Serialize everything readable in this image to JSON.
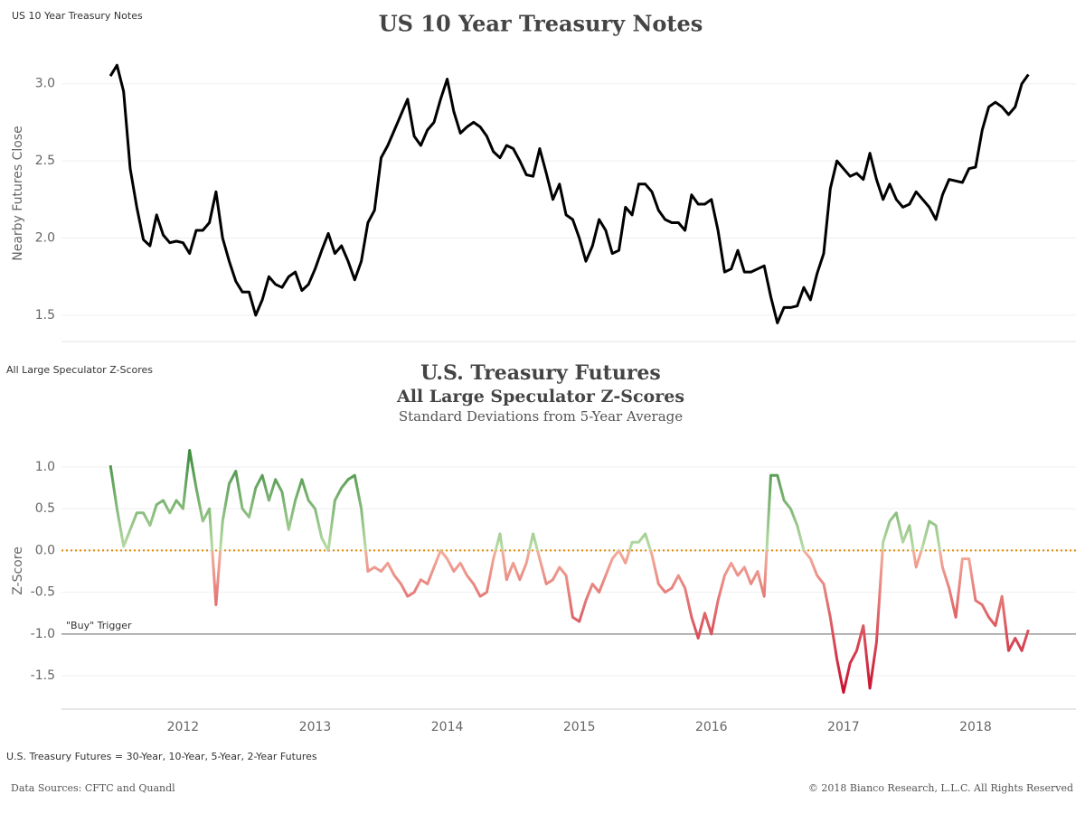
{
  "chart_data": [
    {
      "type": "line",
      "sheet_name": "US 10 Year Treasury Notes",
      "title": "US 10 Year Treasury Notes",
      "y_label": "Nearby Futures Close",
      "x": [
        2011.45,
        2011.5,
        2011.55,
        2011.6,
        2011.65,
        2011.7,
        2011.75,
        2011.8,
        2011.85,
        2011.9,
        2011.95,
        2012.0,
        2012.05,
        2012.1,
        2012.15,
        2012.2,
        2012.25,
        2012.3,
        2012.35,
        2012.4,
        2012.45,
        2012.5,
        2012.55,
        2012.6,
        2012.65,
        2012.7,
        2012.75,
        2012.8,
        2012.85,
        2012.9,
        2012.95,
        2013.0,
        2013.05,
        2013.1,
        2013.15,
        2013.2,
        2013.25,
        2013.3,
        2013.35,
        2013.4,
        2013.45,
        2013.5,
        2013.55,
        2013.6,
        2013.65,
        2013.7,
        2013.75,
        2013.8,
        2013.85,
        2013.9,
        2013.95,
        2014.0,
        2014.05,
        2014.1,
        2014.15,
        2014.2,
        2014.25,
        2014.3,
        2014.35,
        2014.4,
        2014.45,
        2014.5,
        2014.55,
        2014.6,
        2014.65,
        2014.7,
        2014.75,
        2014.8,
        2014.85,
        2014.9,
        2014.95,
        2015.0,
        2015.05,
        2015.1,
        2015.15,
        2015.2,
        2015.25,
        2015.3,
        2015.35,
        2015.4,
        2015.45,
        2015.5,
        2015.55,
        2015.6,
        2015.65,
        2015.7,
        2015.75,
        2015.8,
        2015.85,
        2015.9,
        2015.95,
        2016.0,
        2016.05,
        2016.1,
        2016.15,
        2016.2,
        2016.25,
        2016.3,
        2016.35,
        2016.4,
        2016.45,
        2016.5,
        2016.55,
        2016.6,
        2016.65,
        2016.7,
        2016.75,
        2016.8,
        2016.85,
        2016.9,
        2016.95,
        2017.0,
        2017.05,
        2017.1,
        2017.15,
        2017.2,
        2017.25,
        2017.3,
        2017.35,
        2017.4,
        2017.45,
        2017.5,
        2017.55,
        2017.6,
        2017.65,
        2017.7,
        2017.75,
        2017.8,
        2017.85,
        2017.9,
        2017.95,
        2018.0,
        2018.05,
        2018.1,
        2018.15,
        2018.2,
        2018.25,
        2018.3,
        2018.35,
        2018.4
      ],
      "series": [
        {
          "name": "Nearby Futures Close",
          "color": "#000000",
          "values": [
            3.05,
            3.12,
            2.95,
            2.45,
            2.2,
            1.99,
            1.95,
            2.15,
            2.02,
            1.97,
            1.98,
            1.97,
            1.9,
            2.05,
            2.05,
            2.1,
            2.3,
            2.0,
            1.85,
            1.72,
            1.65,
            1.65,
            1.5,
            1.6,
            1.75,
            1.7,
            1.68,
            1.75,
            1.78,
            1.66,
            1.7,
            1.8,
            1.92,
            2.03,
            1.9,
            1.95,
            1.85,
            1.73,
            1.85,
            2.1,
            2.18,
            2.52,
            2.6,
            2.7,
            2.8,
            2.9,
            2.66,
            2.6,
            2.7,
            2.75,
            2.9,
            3.03,
            2.82,
            2.68,
            2.72,
            2.75,
            2.72,
            2.66,
            2.56,
            2.52,
            2.6,
            2.58,
            2.5,
            2.41,
            2.4,
            2.58,
            2.42,
            2.25,
            2.35,
            2.15,
            2.12,
            2.0,
            1.85,
            1.95,
            2.12,
            2.05,
            1.9,
            1.92,
            2.2,
            2.15,
            2.35,
            2.35,
            2.3,
            2.18,
            2.12,
            2.1,
            2.1,
            2.05,
            2.28,
            2.22,
            2.22,
            2.25,
            2.05,
            1.78,
            1.8,
            1.92,
            1.78,
            1.78,
            1.8,
            1.82,
            1.62,
            1.45,
            1.55,
            1.55,
            1.56,
            1.68,
            1.6,
            1.77,
            1.9,
            2.32,
            2.5,
            2.45,
            2.4,
            2.42,
            2.38,
            2.55,
            2.38,
            2.25,
            2.35,
            2.25,
            2.2,
            2.22,
            2.3,
            2.25,
            2.2,
            2.12,
            2.28,
            2.38,
            2.37,
            2.36,
            2.45,
            2.46,
            2.7,
            2.85,
            2.88,
            2.85,
            2.8,
            2.85,
            3.0,
            3.06
          ]
        }
      ],
      "xlim": [
        2011.08,
        2018.76
      ],
      "ylim": [
        1.33,
        3.25
      ],
      "yticks": [
        1.5,
        {
          "value": 2,
          "label": "2.0"
        },
        2.5,
        {
          "value": 3,
          "label": "3.0"
        }
      ],
      "grid": true
    },
    {
      "type": "line",
      "sheet_name": "All Large Speculator Z-Scores",
      "title": "U.S. Treasury Futures",
      "subtitle": "All Large Speculator Z-Scores",
      "subtitle2": "Standard Deviations from 5-Year Average",
      "y_label": "Z-Score",
      "x": [
        2011.45,
        2011.5,
        2011.55,
        2011.6,
        2011.65,
        2011.7,
        2011.75,
        2011.8,
        2011.85,
        2011.9,
        2011.95,
        2012.0,
        2012.05,
        2012.1,
        2012.15,
        2012.2,
        2012.25,
        2012.3,
        2012.35,
        2012.4,
        2012.45,
        2012.5,
        2012.55,
        2012.6,
        2012.65,
        2012.7,
        2012.75,
        2012.8,
        2012.85,
        2012.9,
        2012.95,
        2013.0,
        2013.05,
        2013.1,
        2013.15,
        2013.2,
        2013.25,
        2013.3,
        2013.35,
        2013.4,
        2013.45,
        2013.5,
        2013.55,
        2013.6,
        2013.65,
        2013.7,
        2013.75,
        2013.8,
        2013.85,
        2013.9,
        2013.95,
        2014.0,
        2014.05,
        2014.1,
        2014.15,
        2014.2,
        2014.25,
        2014.3,
        2014.35,
        2014.4,
        2014.45,
        2014.5,
        2014.55,
        2014.6,
        2014.65,
        2014.7,
        2014.75,
        2014.8,
        2014.85,
        2014.9,
        2014.95,
        2015.0,
        2015.05,
        2015.1,
        2015.15,
        2015.2,
        2015.25,
        2015.3,
        2015.35,
        2015.4,
        2015.45,
        2015.5,
        2015.55,
        2015.6,
        2015.65,
        2015.7,
        2015.75,
        2015.8,
        2015.85,
        2015.9,
        2015.95,
        2016.0,
        2016.05,
        2016.1,
        2016.15,
        2016.2,
        2016.25,
        2016.3,
        2016.35,
        2016.4,
        2016.45,
        2016.5,
        2016.55,
        2016.6,
        2016.65,
        2016.7,
        2016.75,
        2016.8,
        2016.85,
        2016.9,
        2016.95,
        2017.0,
        2017.05,
        2017.1,
        2017.15,
        2017.2,
        2017.25,
        2017.3,
        2017.35,
        2017.4,
        2017.45,
        2017.5,
        2017.55,
        2017.6,
        2017.65,
        2017.7,
        2017.75,
        2017.8,
        2017.85,
        2017.9,
        2017.95,
        2018.0,
        2018.05,
        2018.1,
        2018.15,
        2018.2,
        2018.25,
        2018.3,
        2018.35,
        2018.4
      ],
      "series": [
        {
          "name": "Z-Score",
          "values": [
            1.02,
            0.5,
            0.05,
            0.25,
            0.45,
            0.45,
            0.3,
            0.55,
            0.6,
            0.45,
            0.6,
            0.5,
            1.2,
            0.75,
            0.35,
            0.5,
            -0.65,
            0.35,
            0.8,
            0.95,
            0.5,
            0.4,
            0.75,
            0.9,
            0.6,
            0.85,
            0.7,
            0.25,
            0.6,
            0.85,
            0.6,
            0.5,
            0.15,
            0.0,
            0.6,
            0.75,
            0.85,
            0.9,
            0.5,
            -0.25,
            -0.2,
            -0.25,
            -0.15,
            -0.3,
            -0.4,
            -0.55,
            -0.5,
            -0.35,
            -0.4,
            -0.2,
            0.0,
            -0.1,
            -0.25,
            -0.15,
            -0.3,
            -0.4,
            -0.55,
            -0.5,
            -0.1,
            0.2,
            -0.35,
            -0.15,
            -0.35,
            -0.15,
            0.2,
            -0.1,
            -0.4,
            -0.35,
            -0.2,
            -0.3,
            -0.8,
            -0.85,
            -0.6,
            -0.4,
            -0.5,
            -0.3,
            -0.1,
            0.0,
            -0.15,
            0.1,
            0.1,
            0.2,
            -0.05,
            -0.4,
            -0.5,
            -0.45,
            -0.3,
            -0.45,
            -0.8,
            -1.05,
            -0.75,
            -1.0,
            -0.6,
            -0.3,
            -0.15,
            -0.3,
            -0.2,
            -0.4,
            -0.25,
            -0.55,
            0.9,
            0.9,
            0.6,
            0.5,
            0.3,
            0.0,
            -0.1,
            -0.3,
            -0.4,
            -0.8,
            -1.3,
            -1.7,
            -1.35,
            -1.2,
            -0.9,
            -1.65,
            -1.1,
            0.1,
            0.35,
            0.45,
            0.1,
            0.3,
            -0.2,
            0.05,
            0.35,
            0.3,
            -0.2,
            -0.45,
            -0.8,
            -0.1,
            -0.1,
            -0.6,
            -0.65,
            -0.8,
            -0.9,
            -0.55,
            -1.2,
            -1.05,
            -1.2,
            -0.95
          ]
        }
      ],
      "color_high": "#3d8b3d",
      "color_zero_above": "#b9dca6",
      "color_zero_below": "#f3ad9c",
      "color_low": "#c8102e",
      "xlim": [
        2011.08,
        2018.76
      ],
      "ylim": [
        -1.9,
        1.4
      ],
      "xticks": [
        2012,
        2013,
        2014,
        2015,
        2016,
        2017,
        2018
      ],
      "yticks": [
        -1.5,
        {
          "value": -1,
          "label": "-1.0"
        },
        -0.5,
        {
          "value": 0,
          "label": "0.0"
        },
        0.5,
        {
          "value": 1,
          "label": "1.0"
        }
      ],
      "grid": true,
      "reference_lines": [
        {
          "value": 0,
          "color": "#e08a00",
          "style": "dotted"
        },
        {
          "value": -1,
          "color": "#999999",
          "style": "solid",
          "label": "\"Buy\" Trigger"
        }
      ]
    }
  ],
  "footnote": "U.S. Treasury Futures = 30-Year, 10-Year, 5-Year, 2-Year Futures",
  "sources": "Data Sources: CFTC and Quandl",
  "copyright": "© 2018 Bianco Research, L.L.C. All Rights Reserved"
}
